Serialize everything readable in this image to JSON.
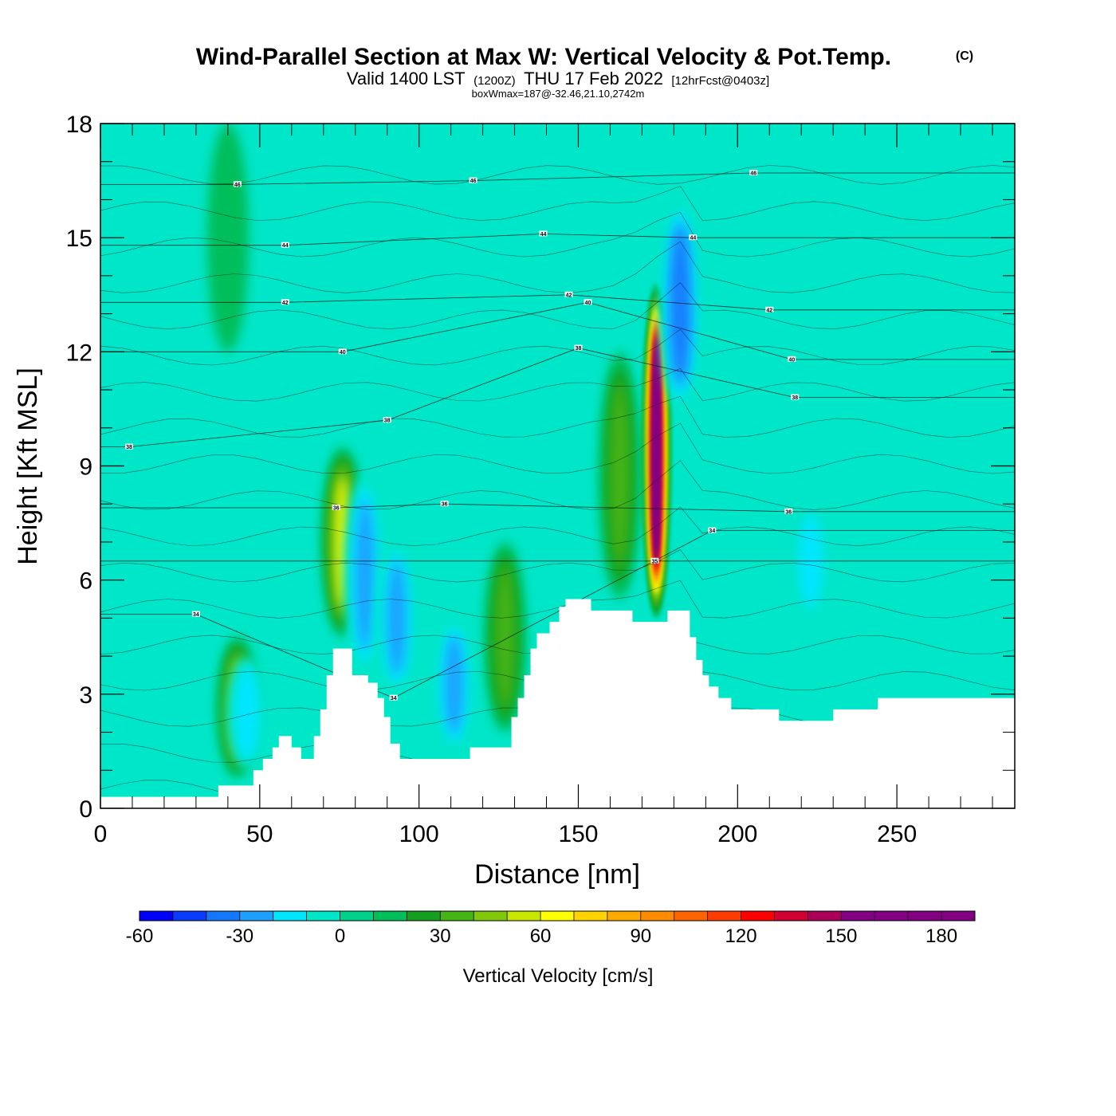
{
  "title": {
    "main": "Wind-Parallel Section at Max W: Vertical Velocity & Pot.Temp.",
    "copyright": "(C)",
    "valid_prefix": "Valid 1400 LST",
    "utc": "(1200Z)",
    "date": "THU 17 Feb 2022",
    "forecast": "[12hrFcst@0403z]",
    "box_info": "boxWmax=187@-32.46,21.10,2742m"
  },
  "chart_data": {
    "type": "heatmap",
    "xlabel": "Distance [nm]",
    "ylabel": "Height [Kft MSL]",
    "xlim": [
      0,
      287
    ],
    "ylim": [
      0,
      18
    ],
    "x_ticks": [
      0,
      50,
      100,
      150,
      200,
      250
    ],
    "y_ticks": [
      0,
      3,
      6,
      9,
      12,
      15,
      18
    ],
    "colorbar": {
      "title": "Vertical Velocity [cm/s]",
      "levels": [
        -60,
        -50,
        -40,
        -30,
        -20,
        -10,
        0,
        10,
        20,
        30,
        40,
        50,
        60,
        70,
        80,
        90,
        100,
        110,
        120,
        130,
        140,
        150,
        160,
        170,
        180,
        190
      ],
      "tick_labels": [
        "-60",
        "-30",
        "0",
        "30",
        "60",
        "90",
        "120",
        "150",
        "180"
      ],
      "colors": [
        "#0000ff",
        "#0a3cff",
        "#1478ff",
        "#1ea0ff",
        "#00e6ff",
        "#00e6c8",
        "#00d28c",
        "#00be5a",
        "#14a01e",
        "#46b414",
        "#82c80a",
        "#c8e600",
        "#ffff00",
        "#ffd200",
        "#ffaa00",
        "#ff8c00",
        "#ff6400",
        "#ff3c00",
        "#ff0000",
        "#d20032",
        "#aa005a",
        "#820082"
      ]
    },
    "background_color": "#00e6c8",
    "terrain": [
      [
        0,
        0.3
      ],
      [
        36,
        0.3
      ],
      [
        37,
        0.6
      ],
      [
        47,
        0.6
      ],
      [
        48,
        1.0
      ],
      [
        51,
        1.3
      ],
      [
        54,
        1.6
      ],
      [
        56,
        1.9
      ],
      [
        60,
        1.6
      ],
      [
        63,
        1.3
      ],
      [
        67,
        1.9
      ],
      [
        69,
        2.6
      ],
      [
        71,
        3.5
      ],
      [
        73,
        4.2
      ],
      [
        77,
        4.2
      ],
      [
        79,
        3.5
      ],
      [
        84,
        3.3
      ],
      [
        87,
        2.9
      ],
      [
        89,
        2.4
      ],
      [
        91,
        1.7
      ],
      [
        94,
        1.3
      ],
      [
        115,
        1.3
      ],
      [
        116,
        1.6
      ],
      [
        127,
        1.6
      ],
      [
        129,
        2.4
      ],
      [
        131,
        2.9
      ],
      [
        133,
        3.5
      ],
      [
        135,
        4.2
      ],
      [
        137,
        4.6
      ],
      [
        141,
        4.9
      ],
      [
        144,
        5.3
      ],
      [
        146,
        5.5
      ],
      [
        153,
        5.5
      ],
      [
        154,
        5.2
      ],
      [
        166,
        5.2
      ],
      [
        167,
        4.9
      ],
      [
        177,
        4.9
      ],
      [
        178,
        5.2
      ],
      [
        184,
        5.2
      ],
      [
        185,
        4.5
      ],
      [
        187,
        3.9
      ],
      [
        189,
        3.5
      ],
      [
        191,
        3.2
      ],
      [
        194,
        2.9
      ],
      [
        198,
        2.6
      ],
      [
        212,
        2.6
      ],
      [
        213,
        2.3
      ],
      [
        229,
        2.3
      ],
      [
        230,
        2.6
      ],
      [
        243,
        2.6
      ],
      [
        244,
        2.9
      ],
      [
        287,
        2.9
      ]
    ],
    "w_regions": [
      {
        "x": 174.5,
        "y_bottom": 5.0,
        "y_top": 13.8,
        "w": 187
      },
      {
        "x": 182,
        "y_bottom": 10.5,
        "y_top": 16.0,
        "w": -45
      },
      {
        "x": 76,
        "y_bottom": 4.5,
        "y_top": 9.5,
        "w": 60
      },
      {
        "x": 163,
        "y_bottom": 5.5,
        "y_top": 12.0,
        "w": 30
      },
      {
        "x": 127,
        "y_bottom": 2.0,
        "y_top": 7.0,
        "w": 30
      },
      {
        "x": 43,
        "y_bottom": 0.8,
        "y_top": 4.5,
        "w": 45
      },
      {
        "x": 46,
        "y_bottom": 1.0,
        "y_top": 4.0,
        "w": -25
      },
      {
        "x": 83,
        "y_bottom": 3.5,
        "y_top": 8.8,
        "w": -35
      },
      {
        "x": 93,
        "y_bottom": 3.0,
        "y_top": 7.0,
        "w": -30
      },
      {
        "x": 111,
        "y_bottom": 1.5,
        "y_top": 5.0,
        "w": -30
      },
      {
        "x": 223,
        "y_bottom": 5.0,
        "y_top": 8.0,
        "w": -20
      },
      {
        "x": 40,
        "y_bottom": 12.0,
        "y_top": 18.0,
        "w": 15
      }
    ],
    "theta_contours": [
      {
        "label": "34",
        "label_at": [
          30,
          5.1
        ]
      },
      {
        "label": "34",
        "label_at": [
          92,
          2.9
        ]
      },
      {
        "label": "34",
        "label_at": [
          192,
          7.3
        ]
      },
      {
        "label": "35",
        "label_at": [
          174,
          6.5
        ]
      },
      {
        "label": "36",
        "label_at": [
          74,
          7.9
        ]
      },
      {
        "label": "36",
        "label_at": [
          108,
          8.0
        ]
      },
      {
        "label": "36",
        "label_at": [
          216,
          7.8
        ]
      },
      {
        "label": "38",
        "label_at": [
          9,
          9.5
        ]
      },
      {
        "label": "38",
        "label_at": [
          90,
          10.2
        ]
      },
      {
        "label": "38",
        "label_at": [
          150,
          12.1
        ]
      },
      {
        "label": "38",
        "label_at": [
          218,
          10.8
        ]
      },
      {
        "label": "40",
        "label_at": [
          76,
          12.0
        ]
      },
      {
        "label": "40",
        "label_at": [
          153,
          13.3
        ]
      },
      {
        "label": "40",
        "label_at": [
          217,
          11.8
        ]
      },
      {
        "label": "42",
        "label_at": [
          58,
          13.3
        ]
      },
      {
        "label": "42",
        "label_at": [
          147,
          13.5
        ]
      },
      {
        "label": "42",
        "label_at": [
          210,
          13.1
        ]
      },
      {
        "label": "44",
        "label_at": [
          58,
          14.8
        ]
      },
      {
        "label": "44",
        "label_at": [
          139,
          15.1
        ]
      },
      {
        "label": "44",
        "label_at": [
          186,
          15.0
        ]
      },
      {
        "label": "46",
        "label_at": [
          43,
          16.4
        ]
      },
      {
        "label": "46",
        "label_at": [
          117,
          16.5
        ]
      },
      {
        "label": "46",
        "label_at": [
          205,
          16.7
        ]
      }
    ]
  }
}
